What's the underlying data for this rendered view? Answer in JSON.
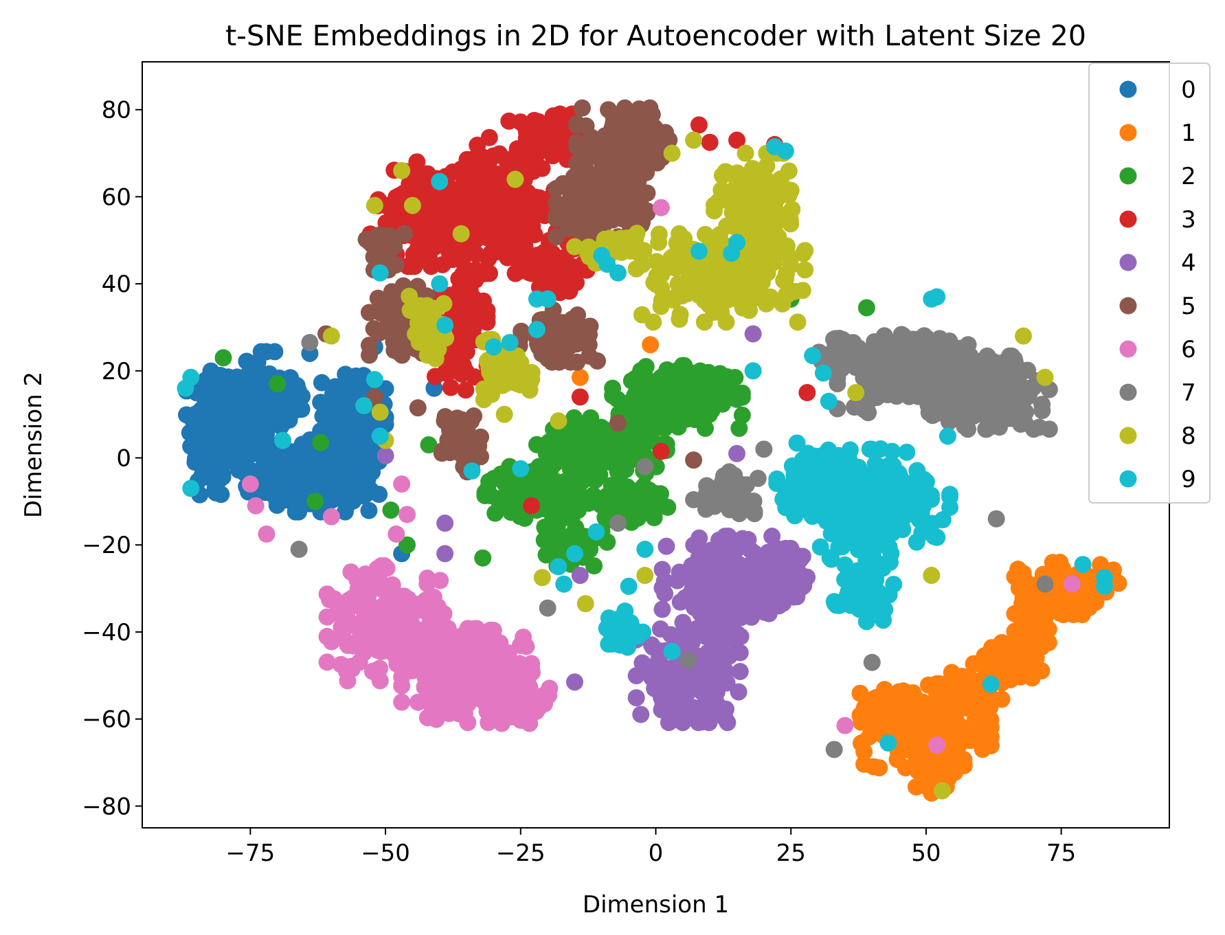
{
  "chart_data": {
    "type": "scatter",
    "title": "t-SNE Embeddings in 2D for Autoencoder with Latent Size 20",
    "xlabel": "Dimension 1",
    "ylabel": "Dimension 2",
    "xlim": [
      -95,
      95
    ],
    "ylim": [
      -85,
      91
    ],
    "x_ticks": [
      -75,
      -50,
      -25,
      0,
      25,
      50,
      75
    ],
    "y_ticks": [
      -80,
      -60,
      -40,
      -20,
      0,
      20,
      40,
      60,
      80
    ],
    "x_tick_labels": [
      "−75",
      "−50",
      "−25",
      "0",
      "25",
      "50",
      "75"
    ],
    "y_tick_labels": [
      "−80",
      "−60",
      "−40",
      "−20",
      "0",
      "20",
      "40",
      "60",
      "80"
    ],
    "grid": false,
    "legend_position": "upper-right",
    "series": [
      {
        "name": "0",
        "color": "#1f77b4",
        "clusters": [
          {
            "cx": -82,
            "cy": 6,
            "rx": 4,
            "ry": 15,
            "n": 140
          },
          {
            "cx": -75,
            "cy": 10,
            "rx": 6,
            "ry": 12,
            "n": 160
          },
          {
            "cx": -68,
            "cy": 14,
            "rx": 3,
            "ry": 4,
            "n": 40
          },
          {
            "cx": -62,
            "cy": -4,
            "rx": 9,
            "ry": 7,
            "n": 200
          },
          {
            "cx": -56,
            "cy": 10,
            "rx": 5,
            "ry": 8,
            "n": 110
          },
          {
            "cx": -70,
            "cy": -6,
            "rx": 5,
            "ry": 4,
            "n": 60
          }
        ],
        "points": [
          [
            -52,
            25.5
          ],
          [
            -64,
            24
          ],
          [
            -41,
            16
          ],
          [
            -47,
            -22
          ]
        ]
      },
      {
        "name": "1",
        "color": "#ff7f0e",
        "clusters": [
          {
            "cx": 50,
            "cy": -64,
            "rx": 10,
            "ry": 6,
            "n": 180
          },
          {
            "cx": 45,
            "cy": -57,
            "rx": 6,
            "ry": 4,
            "n": 70
          },
          {
            "cx": 58,
            "cy": -55,
            "rx": 5,
            "ry": 5,
            "n": 70
          },
          {
            "cx": 66,
            "cy": -47,
            "rx": 6,
            "ry": 4,
            "n": 90
          },
          {
            "cx": 70,
            "cy": -40,
            "rx": 3,
            "ry": 4,
            "n": 50
          },
          {
            "cx": 76,
            "cy": -30,
            "rx": 8,
            "ry": 5,
            "n": 110
          },
          {
            "cx": 52,
            "cy": -72,
            "rx": 4,
            "ry": 3,
            "n": 30
          }
        ],
        "points": [
          [
            -14,
            18.5
          ],
          [
            -1,
            26
          ],
          [
            51,
            -77
          ]
        ]
      },
      {
        "name": "2",
        "color": "#2ca02c",
        "clusters": [
          {
            "cx": 4,
            "cy": 14,
            "rx": 10,
            "ry": 6,
            "n": 180
          },
          {
            "cx": -10,
            "cy": 2,
            "rx": 10,
            "ry": 6,
            "n": 170
          },
          {
            "cx": -22,
            "cy": -8,
            "rx": 8,
            "ry": 5,
            "n": 130
          },
          {
            "cx": -5,
            "cy": -10,
            "rx": 6,
            "ry": 4,
            "n": 80
          },
          {
            "cx": -15,
            "cy": -20,
            "rx": 5,
            "ry": 4,
            "n": 60
          }
        ],
        "points": [
          [
            -80,
            23
          ],
          [
            -70,
            17
          ],
          [
            -62,
            3.5
          ],
          [
            -63,
            -10
          ],
          [
            -49,
            -12
          ],
          [
            -42,
            3
          ],
          [
            -32,
            -23
          ],
          [
            39,
            34.5
          ],
          [
            25,
            36.5
          ],
          [
            -46,
            -20
          ]
        ]
      },
      {
        "name": "3",
        "color": "#d62728",
        "clusters": [
          {
            "cx": -42,
            "cy": 56,
            "rx": 9,
            "ry": 10,
            "n": 200
          },
          {
            "cx": -28,
            "cy": 58,
            "rx": 8,
            "ry": 13,
            "n": 200
          },
          {
            "cx": -20,
            "cy": 73,
            "rx": 6,
            "ry": 5,
            "n": 80
          },
          {
            "cx": -36,
            "cy": 30,
            "rx": 4,
            "ry": 12,
            "n": 90
          },
          {
            "cx": -18,
            "cy": 44,
            "rx": 6,
            "ry": 5,
            "n": 60
          }
        ],
        "points": [
          [
            8,
            76.5
          ],
          [
            10,
            72.5
          ],
          [
            15,
            73
          ],
          [
            22,
            72
          ],
          [
            -14,
            14
          ],
          [
            1,
            1.5
          ],
          [
            -23,
            -11
          ],
          [
            28,
            15
          ]
        ]
      },
      {
        "name": "4",
        "color": "#9467bd",
        "clusters": [
          {
            "cx": 12,
            "cy": -30,
            "rx": 9,
            "ry": 10,
            "n": 200
          },
          {
            "cx": 6,
            "cy": -50,
            "rx": 8,
            "ry": 9,
            "n": 170
          },
          {
            "cx": 23,
            "cy": -28,
            "rx": 5,
            "ry": 6,
            "n": 90
          }
        ],
        "points": [
          [
            -39,
            -15
          ],
          [
            -39,
            -22
          ],
          [
            -15,
            -51.5
          ],
          [
            -14,
            -27
          ],
          [
            15,
            1
          ],
          [
            18,
            28.5
          ],
          [
            -50,
            0.5
          ]
        ]
      },
      {
        "name": "5",
        "color": "#8c564b",
        "clusters": [
          {
            "cx": -5,
            "cy": 72,
            "rx": 8,
            "ry": 7,
            "n": 160
          },
          {
            "cx": -10,
            "cy": 58,
            "rx": 7,
            "ry": 6,
            "n": 110
          },
          {
            "cx": -18,
            "cy": 28,
            "rx": 6,
            "ry": 5,
            "n": 80
          },
          {
            "cx": -47,
            "cy": 32,
            "rx": 5,
            "ry": 7,
            "n": 90
          },
          {
            "cx": -36,
            "cy": 4,
            "rx": 3,
            "ry": 6,
            "n": 60
          },
          {
            "cx": -50,
            "cy": 48,
            "rx": 3,
            "ry": 4,
            "n": 30
          }
        ],
        "points": [
          [
            -61,
            28.5
          ],
          [
            -52,
            14
          ],
          [
            -44,
            11.5
          ],
          [
            -7,
            8
          ],
          [
            7,
            -0.5
          ]
        ]
      },
      {
        "name": "6",
        "color": "#e377c2",
        "clusters": [
          {
            "cx": -50,
            "cy": -38,
            "rx": 9,
            "ry": 11,
            "n": 200
          },
          {
            "cx": -35,
            "cy": -50,
            "rx": 10,
            "ry": 9,
            "n": 200
          },
          {
            "cx": -25,
            "cy": -55,
            "rx": 5,
            "ry": 5,
            "n": 60
          }
        ],
        "points": [
          [
            -75,
            -6
          ],
          [
            -74,
            -11
          ],
          [
            -72,
            -17.5
          ],
          [
            -60,
            -13.5
          ],
          [
            -47,
            -6
          ],
          [
            -48,
            -17.5
          ],
          [
            -46,
            -13
          ],
          [
            1,
            57.5
          ],
          [
            77,
            -29
          ],
          [
            35,
            -61.5
          ],
          [
            52,
            -66
          ]
        ]
      },
      {
        "name": "7",
        "color": "#7f7f7f",
        "clusters": [
          {
            "cx": 48,
            "cy": 20,
            "rx": 12,
            "ry": 8,
            "n": 200
          },
          {
            "cx": 62,
            "cy": 15,
            "rx": 9,
            "ry": 7,
            "n": 160
          },
          {
            "cx": 35,
            "cy": 25,
            "rx": 4,
            "ry": 3,
            "n": 40
          },
          {
            "cx": 13,
            "cy": -8,
            "rx": 5,
            "ry": 4,
            "n": 50
          }
        ],
        "points": [
          [
            -64,
            26.5
          ],
          [
            -66,
            -21
          ],
          [
            -2,
            -2
          ],
          [
            -20,
            -34.5
          ],
          [
            -7,
            -15
          ],
          [
            20,
            2
          ],
          [
            33,
            -67
          ],
          [
            40,
            -47
          ],
          [
            72,
            -29
          ],
          [
            63,
            -14
          ],
          [
            6,
            -46.5
          ]
        ]
      },
      {
        "name": "8",
        "color": "#bcbd22",
        "clusters": [
          {
            "cx": 12,
            "cy": 42,
            "rx": 13,
            "ry": 9,
            "n": 200
          },
          {
            "cx": 18,
            "cy": 58,
            "rx": 6,
            "ry": 10,
            "n": 110
          },
          {
            "cx": -27,
            "cy": 20,
            "rx": 4,
            "ry": 6,
            "n": 60
          },
          {
            "cx": -9,
            "cy": 48,
            "rx": 5,
            "ry": 3,
            "n": 40
          },
          {
            "cx": -42,
            "cy": 30,
            "rx": 3,
            "ry": 6,
            "n": 40
          }
        ],
        "points": [
          [
            -47,
            66
          ],
          [
            -52,
            58
          ],
          [
            -45,
            58
          ],
          [
            -36,
            51.5
          ],
          [
            -26,
            64
          ],
          [
            3,
            70
          ],
          [
            7,
            73
          ],
          [
            -60,
            28
          ],
          [
            -51,
            10.5
          ],
          [
            -50,
            4
          ],
          [
            -18,
            8.5
          ],
          [
            -28,
            10
          ],
          [
            -13,
            -33.5
          ],
          [
            -2,
            -27
          ],
          [
            -21,
            -27.5
          ],
          [
            37,
            15
          ],
          [
            51,
            -27
          ],
          [
            53,
            -76.5
          ],
          [
            68,
            28
          ],
          [
            72,
            18.5
          ]
        ]
      },
      {
        "name": "9",
        "color": "#17becf",
        "clusters": [
          {
            "cx": 40,
            "cy": -10,
            "rx": 12,
            "ry": 10,
            "n": 220
          },
          {
            "cx": 32,
            "cy": -5,
            "rx": 8,
            "ry": 7,
            "n": 110
          },
          {
            "cx": 38,
            "cy": -28,
            "rx": 5,
            "ry": 8,
            "n": 70
          },
          {
            "cx": -6,
            "cy": -40,
            "rx": 3,
            "ry": 4,
            "n": 30
          }
        ],
        "points": [
          [
            -87,
            16
          ],
          [
            -86,
            18.5
          ],
          [
            -86,
            -7
          ],
          [
            -69,
            4
          ],
          [
            -54,
            12
          ],
          [
            -52,
            18
          ],
          [
            -51,
            5
          ],
          [
            -40,
            63.5
          ],
          [
            -51,
            42.5
          ],
          [
            -40,
            40
          ],
          [
            -39,
            30.5
          ],
          [
            -34,
            -3
          ],
          [
            -30,
            25.5
          ],
          [
            -27,
            26.5
          ],
          [
            -25,
            -2.5
          ],
          [
            -22,
            36.5
          ],
          [
            -20,
            36.5
          ],
          [
            -22,
            29.5
          ],
          [
            -10,
            46.5
          ],
          [
            -9,
            44.5
          ],
          [
            -7,
            42.5
          ],
          [
            8,
            47.5
          ],
          [
            14,
            47
          ],
          [
            15,
            49.5
          ],
          [
            22,
            71.5
          ],
          [
            24,
            70.5
          ],
          [
            18,
            20
          ],
          [
            29,
            23.5
          ],
          [
            31,
            19.5
          ],
          [
            32,
            13
          ],
          [
            51,
            36.5
          ],
          [
            52,
            37
          ],
          [
            54,
            5
          ],
          [
            -11,
            -17
          ],
          [
            -15,
            -22
          ],
          [
            -18,
            -25
          ],
          [
            -17,
            -29
          ],
          [
            -5,
            -29.5
          ],
          [
            -2,
            -21
          ],
          [
            3,
            -44.5
          ],
          [
            79,
            -24.5
          ],
          [
            83,
            -27.5
          ],
          [
            83,
            -29.5
          ],
          [
            62,
            -52
          ],
          [
            43,
            -65.5
          ]
        ]
      }
    ]
  }
}
